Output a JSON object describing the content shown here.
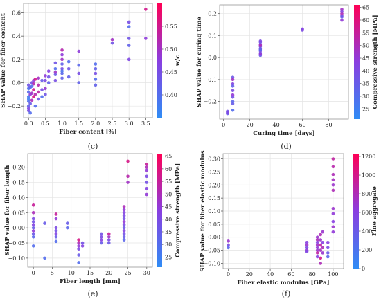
{
  "chart_data": [
    {
      "id": "c",
      "type": "scatter",
      "caption": "(c)",
      "xlabel": "Fiber content [%]",
      "ylabel": "SHAP value for fiber content",
      "xlim": [
        -0.15,
        3.7
      ],
      "ylim": [
        -0.3,
        0.68
      ],
      "xticks": [
        0.0,
        0.5,
        1.0,
        1.5,
        2.0,
        2.5,
        3.0,
        3.5
      ],
      "yticks": [
        -0.2,
        0.0,
        0.2,
        0.4,
        0.6
      ],
      "xtick_labels": [
        "0.0",
        "0.5",
        "1.0",
        "1.5",
        "2.0",
        "2.5",
        "3.0",
        "3.5"
      ],
      "ytick_labels": [
        "−0.2",
        "0.0",
        "0.2",
        "0.4",
        "0.6"
      ],
      "grid": true,
      "colorbar": {
        "label": "w/c",
        "min": 0.35,
        "max": 0.6,
        "ticks": [
          0.4,
          0.45,
          0.5,
          0.55
        ],
        "tick_labels": [
          "0.40",
          "0.45",
          "0.50",
          "0.55"
        ],
        "cmap": "cool-warm"
      },
      "points": [
        [
          0.0,
          -0.24,
          0.45
        ],
        [
          0.0,
          -0.2,
          0.42
        ],
        [
          0.0,
          -0.16,
          0.4
        ],
        [
          0.0,
          -0.12,
          0.38
        ],
        [
          0.0,
          -0.08,
          0.41
        ],
        [
          0.0,
          -0.05,
          0.39
        ],
        [
          0.0,
          -0.02,
          0.44
        ],
        [
          0.0,
          -0.14,
          0.37
        ],
        [
          0.0,
          -0.22,
          0.46
        ],
        [
          0.05,
          -0.26,
          0.4
        ],
        [
          0.05,
          -0.18,
          0.43
        ],
        [
          0.05,
          -0.1,
          0.48
        ],
        [
          0.05,
          -0.04,
          0.42
        ],
        [
          0.1,
          -0.15,
          0.51
        ],
        [
          0.1,
          -0.09,
          0.5
        ],
        [
          0.1,
          -0.03,
          0.4
        ],
        [
          0.1,
          0.0,
          0.45
        ],
        [
          0.15,
          -0.12,
          0.56
        ],
        [
          0.15,
          -0.06,
          0.55
        ],
        [
          0.15,
          -0.01,
          0.52
        ],
        [
          0.15,
          0.02,
          0.48
        ],
        [
          0.2,
          -0.2,
          0.4
        ],
        [
          0.2,
          -0.1,
          0.52
        ],
        [
          0.2,
          0.03,
          0.55
        ],
        [
          0.3,
          -0.08,
          0.53
        ],
        [
          0.3,
          -0.02,
          0.52
        ],
        [
          0.3,
          0.04,
          0.5
        ],
        [
          0.3,
          -0.14,
          0.44
        ],
        [
          0.4,
          -0.06,
          0.45
        ],
        [
          0.4,
          0.02,
          0.43
        ],
        [
          0.4,
          -0.12,
          0.4
        ],
        [
          0.5,
          -0.05,
          0.49
        ],
        [
          0.5,
          0.02,
          0.46
        ],
        [
          0.5,
          0.06,
          0.48
        ],
        [
          0.5,
          -0.1,
          0.44
        ],
        [
          0.6,
          0.0,
          0.42
        ],
        [
          0.6,
          0.05,
          0.44
        ],
        [
          0.6,
          0.1,
          0.47
        ],
        [
          0.8,
          0.02,
          0.45
        ],
        [
          0.8,
          0.07,
          0.43
        ],
        [
          0.8,
          0.12,
          0.4
        ],
        [
          0.8,
          0.17,
          0.44
        ],
        [
          0.8,
          0.09,
          0.5
        ],
        [
          1.0,
          0.04,
          0.42
        ],
        [
          1.0,
          0.08,
          0.41
        ],
        [
          1.0,
          0.12,
          0.45
        ],
        [
          1.0,
          0.16,
          0.42
        ],
        [
          1.0,
          0.2,
          0.5
        ],
        [
          1.0,
          0.24,
          0.48
        ],
        [
          1.0,
          0.28,
          0.52
        ],
        [
          1.0,
          0.1,
          0.39
        ],
        [
          1.2,
          0.05,
          0.42
        ],
        [
          1.2,
          0.12,
          0.44
        ],
        [
          1.2,
          0.18,
          0.4
        ],
        [
          1.5,
          0.0,
          0.42
        ],
        [
          1.5,
          0.08,
          0.45
        ],
        [
          1.5,
          0.15,
          0.41
        ],
        [
          1.5,
          0.27,
          0.48
        ],
        [
          2.0,
          -0.02,
          0.42
        ],
        [
          2.0,
          0.03,
          0.4
        ],
        [
          2.0,
          0.08,
          0.45
        ],
        [
          2.0,
          0.12,
          0.42
        ],
        [
          2.0,
          0.16,
          0.4
        ],
        [
          2.5,
          0.34,
          0.44
        ],
        [
          2.5,
          0.37,
          0.5
        ],
        [
          3.0,
          0.2,
          0.46
        ],
        [
          3.0,
          0.32,
          0.42
        ],
        [
          3.0,
          0.38,
          0.44
        ],
        [
          3.0,
          0.48,
          0.4
        ],
        [
          3.0,
          0.52,
          0.45
        ],
        [
          3.5,
          0.38,
          0.48
        ],
        [
          3.5,
          0.63,
          0.55
        ]
      ]
    },
    {
      "id": "d",
      "type": "scatter",
      "caption": "(d)",
      "xlabel": "Curing time [days]",
      "ylabel": "SHAP value for curing time",
      "xlim": [
        -3,
        95
      ],
      "ylim": [
        -0.28,
        0.24
      ],
      "xticks": [
        0,
        20,
        40,
        60,
        80
      ],
      "yticks": [
        -0.2,
        -0.1,
        0.0,
        0.1,
        0.2
      ],
      "xtick_labels": [
        "0",
        "20",
        "40",
        "60",
        "80"
      ],
      "ytick_labels": [
        "−0.2",
        "−0.1",
        "0.0",
        "0.1",
        "0.2"
      ],
      "grid": true,
      "colorbar": {
        "label": "Compressive strength [MPa]",
        "min": 21,
        "max": 66,
        "ticks": [
          25,
          30,
          35,
          40,
          45,
          50,
          55,
          60,
          65
        ],
        "tick_labels": [
          "25",
          "30",
          "35",
          "40",
          "45",
          "50",
          "55",
          "60",
          "65"
        ],
        "cmap": "cool-warm"
      },
      "points": [
        [
          3,
          -0.245,
          38
        ],
        [
          3,
          -0.255,
          35
        ],
        [
          3,
          -0.25,
          40
        ],
        [
          7,
          -0.24,
          30
        ],
        [
          7,
          -0.21,
          35
        ],
        [
          7,
          -0.18,
          38
        ],
        [
          7,
          -0.15,
          40
        ],
        [
          7,
          -0.12,
          42
        ],
        [
          7,
          -0.09,
          36
        ],
        [
          7,
          -0.2,
          32
        ],
        [
          7,
          -0.17,
          45
        ],
        [
          7,
          -0.13,
          34
        ],
        [
          7,
          -0.1,
          48
        ],
        [
          28,
          0.01,
          35
        ],
        [
          28,
          0.02,
          38
        ],
        [
          28,
          0.03,
          40
        ],
        [
          28,
          0.04,
          42
        ],
        [
          28,
          0.05,
          36
        ],
        [
          28,
          0.06,
          44
        ],
        [
          28,
          0.07,
          38
        ],
        [
          28,
          0.075,
          40
        ],
        [
          28,
          0.015,
          45
        ],
        [
          28,
          0.035,
          32
        ],
        [
          28,
          0.055,
          50
        ],
        [
          60,
          0.125,
          40
        ],
        [
          60,
          0.13,
          42
        ],
        [
          90,
          0.17,
          45
        ],
        [
          90,
          0.19,
          40
        ],
        [
          90,
          0.2,
          50
        ],
        [
          90,
          0.21,
          42
        ],
        [
          90,
          0.22,
          48
        ],
        [
          90,
          0.185,
          36
        ]
      ]
    },
    {
      "id": "e",
      "type": "scatter",
      "caption": "(e)",
      "xlabel": "Fiber length [mm]",
      "ylabel": "SHAP value for fiber length",
      "xlim": [
        -1.5,
        31.5
      ],
      "ylim": [
        -0.13,
        0.245
      ],
      "xticks": [
        0,
        5,
        10,
        15,
        20,
        25,
        30
      ],
      "yticks": [
        -0.1,
        -0.05,
        0.0,
        0.05,
        0.1,
        0.15,
        0.2
      ],
      "xtick_labels": [
        "0",
        "5",
        "10",
        "15",
        "20",
        "25",
        "30"
      ],
      "ytick_labels": [
        "−0.10",
        "−0.05",
        "0.00",
        "0.05",
        "0.10",
        "0.15",
        "0.20"
      ],
      "grid": true,
      "colorbar": {
        "label": "Compressive strength [MPa]",
        "min": 21,
        "max": 66,
        "ticks": [
          25,
          30,
          35,
          40,
          45,
          50,
          55,
          60,
          65
        ],
        "tick_labels": [
          "25",
          "30",
          "35",
          "40",
          "45",
          "50",
          "55",
          "60",
          "65"
        ],
        "cmap": "cool-warm"
      },
      "points": [
        [
          0,
          0.075,
          55
        ],
        [
          0,
          0.05,
          50
        ],
        [
          0,
          0.03,
          40
        ],
        [
          0,
          0.02,
          38
        ],
        [
          0,
          0.01,
          42
        ],
        [
          0,
          0.0,
          35
        ],
        [
          0,
          -0.01,
          45
        ],
        [
          0,
          -0.02,
          36
        ],
        [
          0,
          -0.03,
          32
        ],
        [
          0,
          -0.06,
          30
        ],
        [
          3,
          0.015,
          35
        ],
        [
          3,
          -0.1,
          30
        ],
        [
          6,
          0.045,
          55
        ],
        [
          6,
          0.03,
          45
        ],
        [
          6,
          0.0,
          40
        ],
        [
          6,
          -0.01,
          38
        ],
        [
          6,
          -0.02,
          42
        ],
        [
          6,
          -0.03,
          35
        ],
        [
          6,
          -0.045,
          30
        ],
        [
          9,
          0.015,
          35
        ],
        [
          9,
          0.0,
          32
        ],
        [
          12,
          -0.04,
          58
        ],
        [
          12,
          -0.05,
          50
        ],
        [
          12,
          -0.06,
          45
        ],
        [
          12,
          -0.07,
          40
        ],
        [
          12,
          -0.09,
          35
        ],
        [
          12,
          -0.115,
          30
        ],
        [
          13,
          -0.05,
          38
        ],
        [
          13,
          -0.06,
          42
        ],
        [
          18,
          -0.02,
          38
        ],
        [
          18,
          -0.03,
          40
        ],
        [
          18,
          -0.04,
          42
        ],
        [
          18,
          -0.05,
          35
        ],
        [
          20,
          -0.02,
          55
        ],
        [
          20,
          -0.03,
          48
        ],
        [
          20,
          -0.04,
          40
        ],
        [
          20,
          -0.05,
          36
        ],
        [
          24,
          0.07,
          50
        ],
        [
          24,
          0.06,
          45
        ],
        [
          24,
          0.05,
          42
        ],
        [
          24,
          0.04,
          40
        ],
        [
          24,
          0.03,
          38
        ],
        [
          24,
          0.02,
          45
        ],
        [
          24,
          0.01,
          40
        ],
        [
          24,
          0.0,
          36
        ],
        [
          24,
          -0.01,
          42
        ],
        [
          24,
          -0.02,
          38
        ],
        [
          24,
          -0.03,
          35
        ],
        [
          24,
          -0.04,
          32
        ],
        [
          25,
          0.22,
          58
        ],
        [
          25,
          0.17,
          52
        ],
        [
          25,
          0.15,
          48
        ],
        [
          30,
          0.21,
          55
        ],
        [
          30,
          0.2,
          50
        ],
        [
          30,
          0.19,
          45
        ],
        [
          30,
          0.17,
          40
        ],
        [
          30,
          0.15,
          38
        ],
        [
          30,
          0.13,
          42
        ],
        [
          30,
          0.11,
          45
        ]
      ]
    },
    {
      "id": "f",
      "type": "scatter",
      "caption": "(f)",
      "xlabel": "Fiber elastic modulus [GPa]",
      "ylabel": "SHAP value for fiber elastic modulus",
      "xlim": [
        -5,
        110
      ],
      "ylim": [
        -0.12,
        0.32
      ],
      "xticks": [
        0,
        20,
        40,
        60,
        80,
        100
      ],
      "yticks": [
        -0.1,
        -0.05,
        0.0,
        0.05,
        0.1,
        0.15,
        0.2,
        0.25,
        0.3
      ],
      "xtick_labels": [
        "0",
        "20",
        "40",
        "60",
        "80",
        "100"
      ],
      "ytick_labels": [
        "−0.10",
        "−0.05",
        "0.00",
        "0.05",
        "0.10",
        "0.15",
        "0.20",
        "0.25",
        "0.30"
      ],
      "grid": true,
      "colorbar": {
        "label": "Fine aggregate",
        "min": 0,
        "max": 1230,
        "ticks": [
          0,
          200,
          400,
          600,
          800,
          1000,
          1200
        ],
        "tick_labels": [
          "0",
          "200",
          "400",
          "600",
          "800",
          "1000",
          "1200"
        ],
        "cmap": "cool-warm"
      },
      "points": [
        [
          0,
          -0.015,
          700
        ],
        [
          0,
          -0.03,
          500
        ],
        [
          0,
          -0.04,
          300
        ],
        [
          75,
          -0.02,
          600
        ],
        [
          75,
          -0.03,
          700
        ],
        [
          75,
          -0.04,
          500
        ],
        [
          75,
          -0.05,
          650
        ],
        [
          75,
          -0.055,
          550
        ],
        [
          85,
          0.0,
          700
        ],
        [
          85,
          -0.01,
          800
        ],
        [
          85,
          -0.02,
          600
        ],
        [
          85,
          -0.03,
          750
        ],
        [
          85,
          -0.04,
          650
        ],
        [
          85,
          -0.05,
          700
        ],
        [
          85,
          -0.06,
          900
        ],
        [
          85,
          -0.075,
          600
        ],
        [
          88,
          0.01,
          800
        ],
        [
          88,
          -0.01,
          700
        ],
        [
          88,
          -0.03,
          900
        ],
        [
          88,
          -0.05,
          750
        ],
        [
          88,
          -0.08,
          1000
        ],
        [
          88,
          -0.1,
          800
        ],
        [
          90,
          0.02,
          700
        ],
        [
          90,
          -0.02,
          600
        ],
        [
          90,
          -0.04,
          800
        ],
        [
          90,
          -0.06,
          700
        ],
        [
          95,
          -0.02,
          600
        ],
        [
          95,
          -0.04,
          500
        ],
        [
          95,
          -0.06,
          400
        ],
        [
          95,
          -0.075,
          300
        ],
        [
          100,
          0.3,
          900
        ],
        [
          100,
          0.27,
          850
        ],
        [
          100,
          0.24,
          800
        ],
        [
          100,
          0.22,
          750
        ],
        [
          100,
          0.2,
          700
        ],
        [
          100,
          0.18,
          800
        ],
        [
          100,
          0.11,
          700
        ],
        [
          100,
          0.09,
          650
        ],
        [
          100,
          0.06,
          600
        ],
        [
          100,
          0.04,
          700
        ],
        [
          100,
          0.02,
          650
        ]
      ]
    }
  ]
}
